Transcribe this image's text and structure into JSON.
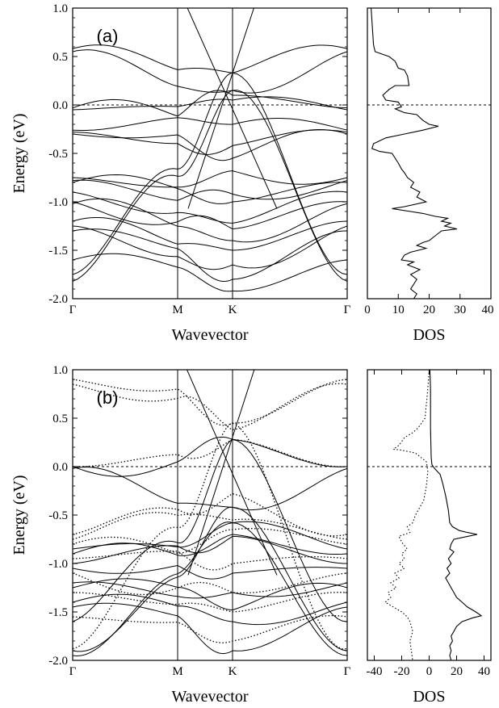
{
  "chart_data": [
    {
      "type": "line",
      "panel_label": "(a)",
      "band_structure": {
        "ylabel": "Energy (eV)",
        "xlabel": "Wavevector",
        "ylim": [
          -2.0,
          1.0
        ],
        "y_ticks": [
          "1.0",
          "0.5",
          "0.0",
          "-0.5",
          "-1.0",
          "-1.5",
          "-2.0"
        ],
        "k_points": [
          "Γ",
          "M",
          "K",
          "Γ"
        ],
        "fermi_level": 0.0,
        "dirac_crossing_at_K": 0.33,
        "bands_at_gamma": [
          0.58,
          0.55,
          -0.03,
          -0.05,
          -0.26,
          -0.28,
          -0.3,
          -0.75,
          -0.78,
          -0.8,
          -0.9,
          -1.0,
          -1.02,
          -1.2,
          -1.25,
          -1.3,
          -1.6,
          -1.75,
          -1.82
        ],
        "bands_at_M": [
          0.3,
          0.22,
          0.1,
          -0.05,
          -0.12,
          -0.22,
          -0.52,
          -0.55,
          -0.78,
          -0.85,
          -0.9,
          -1.1,
          -1.25,
          -1.35,
          -1.55,
          -1.7,
          -1.8,
          -1.9
        ],
        "bands_at_K": [
          0.33,
          0.15,
          0.1,
          0.05,
          -0.2,
          -0.42,
          -0.55,
          -0.68,
          -0.92,
          -1.0,
          -1.22,
          -1.28,
          -1.4,
          -1.5,
          -1.65,
          -1.8,
          -1.92
        ]
      },
      "dos": {
        "xlabel": "DOS",
        "x_ticks": [
          "0",
          "10",
          "20",
          "30",
          "40"
        ],
        "xlim": [
          0,
          40
        ],
        "ylim": [
          -2.0,
          1.0
        ],
        "series": [
          {
            "line_style": "solid",
            "points": [
              [
                1.2,
                1.0
              ],
              [
                2.0,
                0.62
              ],
              [
                2.5,
                0.55
              ],
              [
                7,
                0.5
              ],
              [
                9,
                0.45
              ],
              [
                10,
                0.38
              ],
              [
                12,
                0.36
              ],
              [
                13,
                0.3
              ],
              [
                13.5,
                0.2
              ],
              [
                9,
                0.2
              ],
              [
                7,
                0.16
              ],
              [
                5,
                0.1
              ],
              [
                6,
                0.05
              ],
              [
                10,
                0.03
              ],
              [
                11,
                -0.02
              ],
              [
                9,
                -0.04
              ],
              [
                12,
                -0.08
              ],
              [
                16,
                -0.1
              ],
              [
                18,
                -0.16
              ],
              [
                20,
                -0.2
              ],
              [
                23,
                -0.22
              ],
              [
                18,
                -0.26
              ],
              [
                12,
                -0.3
              ],
              [
                6,
                -0.34
              ],
              [
                2,
                -0.4
              ],
              [
                1.5,
                -0.45
              ],
              [
                4,
                -0.48
              ],
              [
                8,
                -0.5
              ],
              [
                9,
                -0.55
              ],
              [
                10,
                -0.6
              ],
              [
                11,
                -0.66
              ],
              [
                12,
                -0.7
              ],
              [
                13,
                -0.75
              ],
              [
                15,
                -0.8
              ],
              [
                14,
                -0.85
              ],
              [
                17,
                -0.9
              ],
              [
                16,
                -0.95
              ],
              [
                19,
                -1.0
              ],
              [
                12,
                -1.05
              ],
              [
                8,
                -1.07
              ],
              [
                14,
                -1.1
              ],
              [
                18,
                -1.12
              ],
              [
                22,
                -1.15
              ],
              [
                26,
                -1.17
              ],
              [
                24,
                -1.2
              ],
              [
                27,
                -1.22
              ],
              [
                25,
                -1.25
              ],
              [
                29,
                -1.28
              ],
              [
                24,
                -1.3
              ],
              [
                22,
                -1.35
              ],
              [
                20,
                -1.4
              ],
              [
                18,
                -1.42
              ],
              [
                16,
                -1.45
              ],
              [
                19,
                -1.48
              ],
              [
                14,
                -1.52
              ],
              [
                12,
                -1.55
              ],
              [
                11,
                -1.6
              ],
              [
                15,
                -1.62
              ],
              [
                13,
                -1.65
              ],
              [
                17,
                -1.7
              ],
              [
                14,
                -1.75
              ],
              [
                16,
                -1.8
              ],
              [
                15,
                -1.85
              ],
              [
                14,
                -1.9
              ],
              [
                16,
                -1.95
              ],
              [
                15,
                -2.0
              ]
            ]
          }
        ]
      }
    },
    {
      "type": "line",
      "panel_label": "(b)",
      "band_structure": {
        "ylabel": "Energy (eV)",
        "xlabel": "Wavevector",
        "ylim": [
          -2.0,
          1.0
        ],
        "y_ticks": [
          "1.0",
          "0.5",
          "0.0",
          "-0.5",
          "-1.0",
          "-1.5",
          "-2.0"
        ],
        "k_points": [
          "Γ",
          "M",
          "K",
          "Γ"
        ],
        "fermi_level": 0.0,
        "dirac_crossing_at_K": 0.28,
        "solid_bands_at_gamma": [
          0.0,
          -0.02,
          -0.85,
          -0.9,
          -1.0,
          -1.05,
          -1.2,
          -1.25,
          -1.4,
          -1.45,
          -1.6,
          -1.9,
          -1.95
        ],
        "dotted_bands_at_gamma": [
          0.9,
          0.85,
          0.0,
          -0.7,
          -0.75,
          -0.8,
          -0.95,
          -1.1,
          -1.3,
          -1.55,
          -1.88
        ],
        "solid_bands_at_K": [
          0.28,
          -0.42,
          -0.58,
          -0.7,
          -0.72,
          -1.1,
          -1.3,
          -1.48,
          -1.6,
          -1.9
        ],
        "dotted_bands_at_K": [
          0.45,
          0.38,
          0.28,
          -0.28,
          -0.55,
          -0.65,
          -1.0,
          -1.3,
          -1.5,
          -1.8
        ]
      },
      "dos": {
        "xlabel": "DOS",
        "x_ticks": [
          "-40",
          "-20",
          "0",
          "20",
          "40"
        ],
        "xlim": [
          -45,
          45
        ],
        "ylim": [
          -2.0,
          1.0
        ],
        "series": [
          {
            "line_style": "solid",
            "points": [
              [
                0.5,
                1.0
              ],
              [
                1.0,
                0.8
              ],
              [
                1.0,
                0.4
              ],
              [
                1.5,
                0.1
              ],
              [
                2.0,
                0.02
              ],
              [
                4,
                -0.02
              ],
              [
                8,
                -0.08
              ],
              [
                10,
                -0.18
              ],
              [
                12,
                -0.3
              ],
              [
                14,
                -0.45
              ],
              [
                15,
                -0.58
              ],
              [
                17,
                -0.62
              ],
              [
                22,
                -0.66
              ],
              [
                28,
                -0.68
              ],
              [
                35,
                -0.7
              ],
              [
                28,
                -0.72
              ],
              [
                18,
                -0.75
              ],
              [
                16,
                -0.8
              ],
              [
                15,
                -0.85
              ],
              [
                18,
                -0.88
              ],
              [
                14,
                -0.95
              ],
              [
                16,
                -1.0
              ],
              [
                13,
                -1.05
              ],
              [
                15,
                -1.1
              ],
              [
                12,
                -1.15
              ],
              [
                14,
                -1.2
              ],
              [
                16,
                -1.25
              ],
              [
                18,
                -1.3
              ],
              [
                20,
                -1.35
              ],
              [
                24,
                -1.4
              ],
              [
                28,
                -1.45
              ],
              [
                34,
                -1.5
              ],
              [
                38,
                -1.54
              ],
              [
                32,
                -1.56
              ],
              [
                24,
                -1.6
              ],
              [
                20,
                -1.65
              ],
              [
                18,
                -1.7
              ],
              [
                16,
                -1.75
              ],
              [
                17,
                -1.8
              ],
              [
                15,
                -1.85
              ],
              [
                16,
                -1.9
              ],
              [
                15,
                -1.95
              ],
              [
                16,
                -2.0
              ]
            ]
          },
          {
            "line_style": "dotted",
            "points": [
              [
                0,
                1.0
              ],
              [
                -1,
                0.8
              ],
              [
                -3,
                0.5
              ],
              [
                -8,
                0.4
              ],
              [
                -12,
                0.35
              ],
              [
                -18,
                0.3
              ],
              [
                -22,
                0.22
              ],
              [
                -26,
                0.18
              ],
              [
                -20,
                0.17
              ],
              [
                -10,
                0.14
              ],
              [
                -2,
                0.05
              ],
              [
                -1,
                -0.05
              ],
              [
                -2,
                -0.2
              ],
              [
                -4,
                -0.35
              ],
              [
                -8,
                -0.45
              ],
              [
                -10,
                -0.5
              ],
              [
                -12,
                -0.58
              ],
              [
                -16,
                -0.62
              ],
              [
                -14,
                -0.68
              ],
              [
                -22,
                -0.72
              ],
              [
                -20,
                -0.78
              ],
              [
                -16,
                -0.85
              ],
              [
                -20,
                -0.9
              ],
              [
                -18,
                -0.95
              ],
              [
                -22,
                -1.0
              ],
              [
                -18,
                -1.05
              ],
              [
                -25,
                -1.1
              ],
              [
                -22,
                -1.15
              ],
              [
                -28,
                -1.2
              ],
              [
                -24,
                -1.25
              ],
              [
                -30,
                -1.3
              ],
              [
                -28,
                -1.35
              ],
              [
                -32,
                -1.4
              ],
              [
                -26,
                -1.45
              ],
              [
                -20,
                -1.5
              ],
              [
                -16,
                -1.55
              ],
              [
                -14,
                -1.6
              ],
              [
                -12,
                -1.7
              ],
              [
                -14,
                -1.8
              ],
              [
                -13,
                -1.9
              ],
              [
                -12,
                -2.0
              ]
            ]
          }
        ]
      }
    }
  ]
}
